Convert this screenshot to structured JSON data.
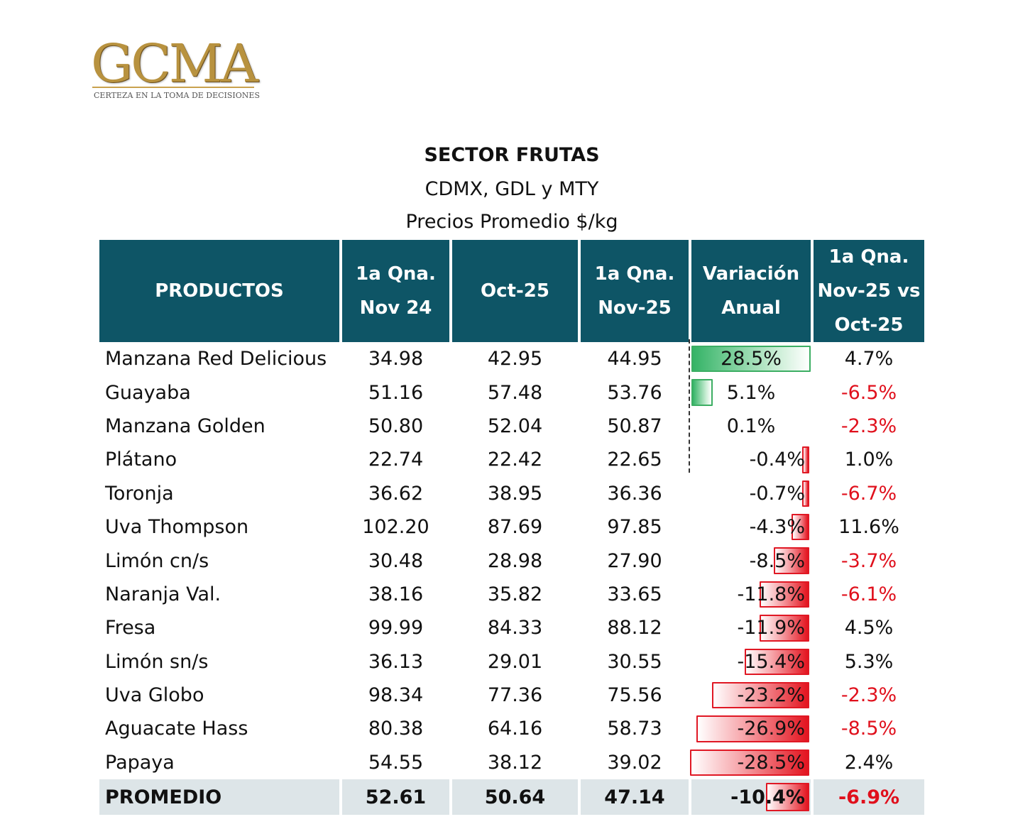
{
  "logo": {
    "word": "GCMA",
    "tagline": "CERTEZA EN LA TOMA DE DECISIONES"
  },
  "title": "SECTOR FRUTAS",
  "subtitle": "CDMX, GDL y MTY",
  "unit_line": "Precios Promedio $/kg",
  "headers": [
    "PRODUCTOS",
    "1a Qna. Nov 24",
    "Oct-25",
    "1a Qna. Nov-25",
    "Variación Anual",
    "1a Qna. Nov-25 vs Oct-25"
  ],
  "colors": {
    "header_bg": "#0e5566",
    "positive": "#3cae63",
    "negative": "#e01824",
    "average_row": "#dde5e8"
  },
  "rows": [
    {
      "product": "Manzana Red Delicious",
      "nov24": "34.98",
      "oct25": "42.95",
      "nov25": "44.95",
      "anual": "28.5%",
      "anual_value": 28.5,
      "mensual": "4.7%",
      "mensual_negative": false
    },
    {
      "product": "Guayaba",
      "nov24": "51.16",
      "oct25": "57.48",
      "nov25": "53.76",
      "anual": "5.1%",
      "anual_value": 5.1,
      "mensual": "-6.5%",
      "mensual_negative": true
    },
    {
      "product": "Manzana Golden",
      "nov24": "50.80",
      "oct25": "52.04",
      "nov25": "50.87",
      "anual": "0.1%",
      "anual_value": 0.1,
      "mensual": "-2.3%",
      "mensual_negative": true
    },
    {
      "product": "Plátano",
      "nov24": "22.74",
      "oct25": "22.42",
      "nov25": "22.65",
      "anual": "-0.4%",
      "anual_value": -0.4,
      "mensual": "1.0%",
      "mensual_negative": false
    },
    {
      "product": "Toronja",
      "nov24": "36.62",
      "oct25": "38.95",
      "nov25": "36.36",
      "anual": "-0.7%",
      "anual_value": -0.7,
      "mensual": "-6.7%",
      "mensual_negative": true
    },
    {
      "product": "Uva Thompson",
      "nov24": "102.20",
      "oct25": "87.69",
      "nov25": "97.85",
      "anual": "-4.3%",
      "anual_value": -4.3,
      "mensual": "11.6%",
      "mensual_negative": false
    },
    {
      "product": "Limón cn/s",
      "nov24": "30.48",
      "oct25": "28.98",
      "nov25": "27.90",
      "anual": "-8.5%",
      "anual_value": -8.5,
      "mensual": "-3.7%",
      "mensual_negative": true
    },
    {
      "product": "Naranja Val.",
      "nov24": "38.16",
      "oct25": "35.82",
      "nov25": "33.65",
      "anual": "-11.8%",
      "anual_value": -11.8,
      "mensual": "-6.1%",
      "mensual_negative": true
    },
    {
      "product": "Fresa",
      "nov24": "99.99",
      "oct25": "84.33",
      "nov25": "88.12",
      "anual": "-11.9%",
      "anual_value": -11.9,
      "mensual": "4.5%",
      "mensual_negative": false
    },
    {
      "product": "Limón sn/s",
      "nov24": "36.13",
      "oct25": "29.01",
      "nov25": "30.55",
      "anual": "-15.4%",
      "anual_value": -15.4,
      "mensual": "5.3%",
      "mensual_negative": false
    },
    {
      "product": "Uva Globo",
      "nov24": "98.34",
      "oct25": "77.36",
      "nov25": "75.56",
      "anual": "-23.2%",
      "anual_value": -23.2,
      "mensual": "-2.3%",
      "mensual_negative": true
    },
    {
      "product": "Aguacate Hass",
      "nov24": "80.38",
      "oct25": "64.16",
      "nov25": "58.73",
      "anual": "-26.9%",
      "anual_value": -26.9,
      "mensual": "-8.5%",
      "mensual_negative": true
    },
    {
      "product": "Papaya",
      "nov24": "54.55",
      "oct25": "38.12",
      "nov25": "39.02",
      "anual": "-28.5%",
      "anual_value": -28.5,
      "mensual": "2.4%",
      "mensual_negative": false
    }
  ],
  "average": {
    "label": "PROMEDIO",
    "nov24": "52.61",
    "oct25": "50.64",
    "nov25": "47.14",
    "anual": "-10.4%",
    "anual_value": -10.4,
    "mensual": "-6.9%",
    "mensual_negative": true
  }
}
